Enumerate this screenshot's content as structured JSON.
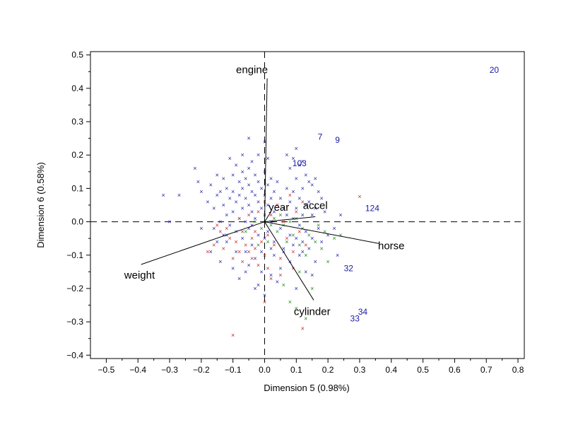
{
  "chart_data": {
    "type": "scatter",
    "title": "",
    "xlabel": "Dimension 5 (0.98%)",
    "ylabel": "Dimension 6 (0.58%)",
    "xlim": [
      -0.55,
      0.82
    ],
    "ylim": [
      -0.41,
      0.51
    ],
    "x_ticks": [
      -0.5,
      -0.4,
      -0.3,
      -0.2,
      -0.1,
      0.0,
      0.1,
      0.2,
      0.3,
      0.4,
      0.5,
      0.6,
      0.7,
      0.8
    ],
    "y_ticks": [
      -0.4,
      -0.3,
      -0.2,
      -0.1,
      0.0,
      0.1,
      0.2,
      0.3,
      0.4,
      0.5
    ],
    "x_tick_labels": [
      "−0.5",
      "−0.4",
      "−0.3",
      "−0.2",
      "−0.1",
      "0.0",
      "0.1",
      "0.2",
      "0.3",
      "0.4",
      "0.5",
      "0.6",
      "0.7",
      "0.8"
    ],
    "y_tick_labels": [
      "−0.4",
      "−0.3",
      "−0.2",
      "−0.1",
      "0.0",
      "0.1",
      "0.2",
      "0.3",
      "0.4",
      "0.5"
    ],
    "grid": false,
    "reference_lines": "dashed at x=0 and y=0",
    "marker_glyph": "×",
    "colors": {
      "blue": "#1a1aa8",
      "red": "#cc2222",
      "green": "#1a8a1a",
      "vector": "#000000",
      "label_blue": "#1a1aa8"
    },
    "vectors": [
      {
        "name": "engine",
        "x": 0.008,
        "y": 0.43,
        "label_x": -0.04,
        "label_y": 0.445
      },
      {
        "name": "year",
        "x": 0.02,
        "y": 0.03,
        "label_x": 0.045,
        "label_y": 0.033
      },
      {
        "name": "accel",
        "x": 0.16,
        "y": 0.015,
        "label_x": 0.16,
        "label_y": 0.038
      },
      {
        "name": "horse",
        "x": 0.36,
        "y": -0.065,
        "label_x": 0.4,
        "label_y": -0.083
      },
      {
        "name": "weight",
        "x": -0.39,
        "y": -0.128,
        "label_x": -0.395,
        "label_y": -0.17
      },
      {
        "name": "cylinder",
        "x": 0.155,
        "y": -0.235,
        "label_x": 0.15,
        "label_y": -0.28
      }
    ],
    "labeled_points": [
      {
        "label": "20",
        "x": 0.725,
        "y": 0.455
      },
      {
        "label": "7",
        "x": 0.175,
        "y": 0.255
      },
      {
        "label": "9",
        "x": 0.23,
        "y": 0.245
      },
      {
        "label": "103",
        "x": 0.11,
        "y": 0.175
      },
      {
        "label": "124",
        "x": 0.34,
        "y": 0.04
      },
      {
        "label": "32",
        "x": 0.265,
        "y": -0.14
      },
      {
        "label": "34",
        "x": 0.31,
        "y": -0.27
      },
      {
        "label": "33",
        "x": 0.285,
        "y": -0.29
      }
    ],
    "series": [
      {
        "color": "blue",
        "points": [
          [
            -0.32,
            0.08
          ],
          [
            -0.27,
            0.08
          ],
          [
            -0.3,
            0.0
          ],
          [
            -0.22,
            0.16
          ],
          [
            -0.21,
            0.12
          ],
          [
            -0.2,
            0.09
          ],
          [
            -0.2,
            -0.02
          ],
          [
            -0.18,
            0.06
          ],
          [
            -0.17,
            0.11
          ],
          [
            -0.17,
            -0.09
          ],
          [
            -0.16,
            0.04
          ],
          [
            -0.16,
            -0.02
          ],
          [
            -0.15,
            0.14
          ],
          [
            -0.15,
            0.08
          ],
          [
            -0.14,
            0.09
          ],
          [
            -0.14,
            0.0
          ],
          [
            -0.14,
            -0.12
          ],
          [
            -0.13,
            0.13
          ],
          [
            -0.13,
            0.05
          ],
          [
            -0.13,
            -0.04
          ],
          [
            -0.12,
            0.1
          ],
          [
            -0.12,
            0.02
          ],
          [
            -0.12,
            -0.06
          ],
          [
            -0.11,
            0.19
          ],
          [
            -0.11,
            0.07
          ],
          [
            -0.11,
            -0.01
          ],
          [
            -0.1,
            0.14
          ],
          [
            -0.1,
            0.09
          ],
          [
            -0.1,
            0.03
          ],
          [
            -0.1,
            -0.14
          ],
          [
            -0.09,
            0.17
          ],
          [
            -0.09,
            0.06
          ],
          [
            -0.09,
            -0.03
          ],
          [
            -0.08,
            0.12
          ],
          [
            -0.08,
            0.08
          ],
          [
            -0.08,
            0.01
          ],
          [
            -0.08,
            -0.17
          ],
          [
            -0.07,
            0.2
          ],
          [
            -0.07,
            0.15
          ],
          [
            -0.07,
            0.1
          ],
          [
            -0.07,
            0.04
          ],
          [
            -0.07,
            -0.05
          ],
          [
            -0.06,
            0.13
          ],
          [
            -0.06,
            0.07
          ],
          [
            -0.06,
            0.0
          ],
          [
            -0.06,
            -0.09
          ],
          [
            -0.05,
            0.25
          ],
          [
            -0.05,
            0.16
          ],
          [
            -0.05,
            0.11
          ],
          [
            -0.05,
            0.05
          ],
          [
            -0.05,
            -0.02
          ],
          [
            -0.05,
            -0.13
          ],
          [
            -0.04,
            0.18
          ],
          [
            -0.04,
            0.09
          ],
          [
            -0.04,
            0.03
          ],
          [
            -0.04,
            -0.07
          ],
          [
            -0.03,
            0.14
          ],
          [
            -0.03,
            0.08
          ],
          [
            -0.03,
            0.01
          ],
          [
            -0.03,
            -0.11
          ],
          [
            -0.02,
            0.2
          ],
          [
            -0.02,
            0.12
          ],
          [
            -0.02,
            0.06
          ],
          [
            -0.02,
            -0.04
          ],
          [
            -0.01,
            0.1
          ],
          [
            -0.01,
            0.04
          ],
          [
            -0.01,
            -0.09
          ],
          [
            -0.01,
            -0.15
          ],
          [
            0.0,
            0.24
          ],
          [
            0.0,
            0.15
          ],
          [
            0.0,
            0.08
          ],
          [
            0.0,
            0.02
          ],
          [
            0.01,
            0.19
          ],
          [
            0.01,
            0.11
          ],
          [
            0.01,
            0.05
          ],
          [
            0.01,
            -0.03
          ],
          [
            0.02,
            0.13
          ],
          [
            0.02,
            0.07
          ],
          [
            0.02,
            0.0
          ],
          [
            0.03,
            0.09
          ],
          [
            0.03,
            0.03
          ],
          [
            0.03,
            -0.06
          ],
          [
            0.04,
            0.12
          ],
          [
            0.04,
            0.05
          ],
          [
            0.05,
            0.07
          ],
          [
            0.05,
            -0.02
          ],
          [
            0.06,
            0.04
          ],
          [
            0.06,
            -0.08
          ],
          [
            0.07,
            0.2
          ],
          [
            0.07,
            0.1
          ],
          [
            0.07,
            0.02
          ],
          [
            0.08,
            0.16
          ],
          [
            0.08,
            0.06
          ],
          [
            0.08,
            -0.04
          ],
          [
            0.09,
            0.19
          ],
          [
            0.09,
            0.09
          ],
          [
            0.09,
            0.01
          ],
          [
            0.1,
            0.22
          ],
          [
            0.1,
            0.13
          ],
          [
            0.1,
            0.04
          ],
          [
            0.1,
            -0.05
          ],
          [
            0.11,
            0.17
          ],
          [
            0.11,
            0.07
          ],
          [
            0.11,
            -0.01
          ],
          [
            0.12,
            0.18
          ],
          [
            0.12,
            0.1
          ],
          [
            0.12,
            0.02
          ],
          [
            0.12,
            -0.06
          ],
          [
            0.13,
            0.14
          ],
          [
            0.13,
            0.05
          ],
          [
            0.13,
            -0.03
          ],
          [
            0.14,
            0.12
          ],
          [
            0.14,
            0.06
          ],
          [
            0.14,
            -0.08
          ],
          [
            0.15,
            0.11
          ],
          [
            0.15,
            0.02
          ],
          [
            0.15,
            -0.05
          ],
          [
            0.16,
            0.13
          ],
          [
            0.16,
            0.04
          ],
          [
            0.17,
            0.09
          ],
          [
            0.17,
            -0.02
          ],
          [
            0.18,
            0.07
          ],
          [
            0.18,
            -0.06
          ],
          [
            0.19,
            0.03
          ],
          [
            0.2,
            -0.04
          ],
          [
            0.22,
            -0.02
          ],
          [
            0.24,
            0.02
          ],
          [
            0.23,
            -0.1
          ],
          [
            0.15,
            -0.16
          ],
          [
            0.11,
            -0.1
          ],
          [
            0.08,
            -0.12
          ],
          [
            0.05,
            -0.14
          ],
          [
            0.04,
            -0.18
          ],
          [
            0.02,
            -0.16
          ],
          [
            -0.02,
            -0.19
          ],
          [
            -0.06,
            -0.15
          ],
          [
            -0.03,
            -0.2
          ],
          [
            0.0,
            -0.22
          ],
          [
            0.13,
            -0.15
          ],
          [
            0.1,
            -0.2
          ],
          [
            0.16,
            -0.12
          ],
          [
            0.06,
            -0.09
          ],
          [
            0.09,
            -0.07
          ],
          [
            0.12,
            -0.09
          ],
          [
            0.03,
            -0.1
          ],
          [
            -0.09,
            -0.09
          ],
          [
            -0.12,
            -0.04
          ],
          [
            -0.15,
            -0.06
          ],
          [
            0.0,
            -0.05
          ],
          [
            0.02,
            -0.08
          ],
          [
            -0.04,
            -0.01
          ]
        ]
      },
      {
        "color": "red",
        "points": [
          [
            -0.18,
            -0.09
          ],
          [
            -0.16,
            -0.07
          ],
          [
            -0.14,
            -0.03
          ],
          [
            -0.13,
            -0.08
          ],
          [
            -0.12,
            -0.02
          ],
          [
            -0.11,
            -0.05
          ],
          [
            -0.1,
            -0.11
          ],
          [
            -0.09,
            -0.06
          ],
          [
            -0.08,
            -0.09
          ],
          [
            -0.08,
            0.01
          ],
          [
            -0.07,
            -0.03
          ],
          [
            -0.07,
            -0.12
          ],
          [
            -0.06,
            -0.07
          ],
          [
            -0.05,
            -0.09
          ],
          [
            -0.05,
            0.02
          ],
          [
            -0.04,
            -0.05
          ],
          [
            -0.04,
            -0.11
          ],
          [
            -0.03,
            -0.03
          ],
          [
            -0.03,
            -0.08
          ],
          [
            -0.02,
            0.03
          ],
          [
            -0.02,
            -0.13
          ],
          [
            -0.01,
            -0.06
          ],
          [
            0.0,
            -0.1
          ],
          [
            0.0,
            0.06
          ],
          [
            0.01,
            -0.04
          ],
          [
            0.01,
            -0.14
          ],
          [
            0.02,
            0.02
          ],
          [
            0.03,
            -0.07
          ],
          [
            0.04,
            0.05
          ],
          [
            0.05,
            -0.11
          ],
          [
            0.06,
            0.0
          ],
          [
            0.07,
            -0.05
          ],
          [
            0.08,
            0.08
          ],
          [
            0.09,
            -0.09
          ],
          [
            0.1,
            0.03
          ],
          [
            0.11,
            -0.03
          ],
          [
            0.12,
            0.06
          ],
          [
            0.13,
            -0.07
          ],
          [
            0.3,
            0.075
          ],
          [
            0.0,
            -0.24
          ],
          [
            0.12,
            -0.32
          ],
          [
            -0.1,
            -0.34
          ],
          [
            0.02,
            -0.17
          ],
          [
            -0.15,
            -0.01
          ],
          [
            0.05,
            -0.16
          ],
          [
            0.09,
            -0.14
          ]
        ]
      },
      {
        "color": "green",
        "points": [
          [
            -0.06,
            -0.03
          ],
          [
            -0.03,
            0.0
          ],
          [
            -0.01,
            -0.02
          ],
          [
            0.0,
            0.0
          ],
          [
            0.02,
            -0.01
          ],
          [
            0.03,
            0.01
          ],
          [
            0.04,
            -0.03
          ],
          [
            0.05,
            0.02
          ],
          [
            0.06,
            -0.01
          ],
          [
            0.07,
            -0.06
          ],
          [
            0.08,
            0.0
          ],
          [
            0.09,
            -0.04
          ],
          [
            0.1,
            0.01
          ],
          [
            0.11,
            -0.07
          ],
          [
            0.12,
            -0.02
          ],
          [
            0.13,
            -0.1
          ],
          [
            0.14,
            -0.04
          ],
          [
            0.15,
            -0.2
          ],
          [
            0.16,
            -0.06
          ],
          [
            0.17,
            -0.01
          ],
          [
            0.18,
            -0.08
          ],
          [
            0.19,
            -0.03
          ],
          [
            0.2,
            -0.12
          ],
          [
            0.22,
            -0.05
          ],
          [
            0.24,
            -0.04
          ],
          [
            0.08,
            -0.24
          ],
          [
            0.1,
            -0.26
          ],
          [
            0.13,
            -0.29
          ],
          [
            0.06,
            -0.19
          ],
          [
            0.11,
            -0.15
          ],
          [
            -0.02,
            -0.07
          ],
          [
            0.01,
            -0.06
          ]
        ]
      }
    ]
  }
}
